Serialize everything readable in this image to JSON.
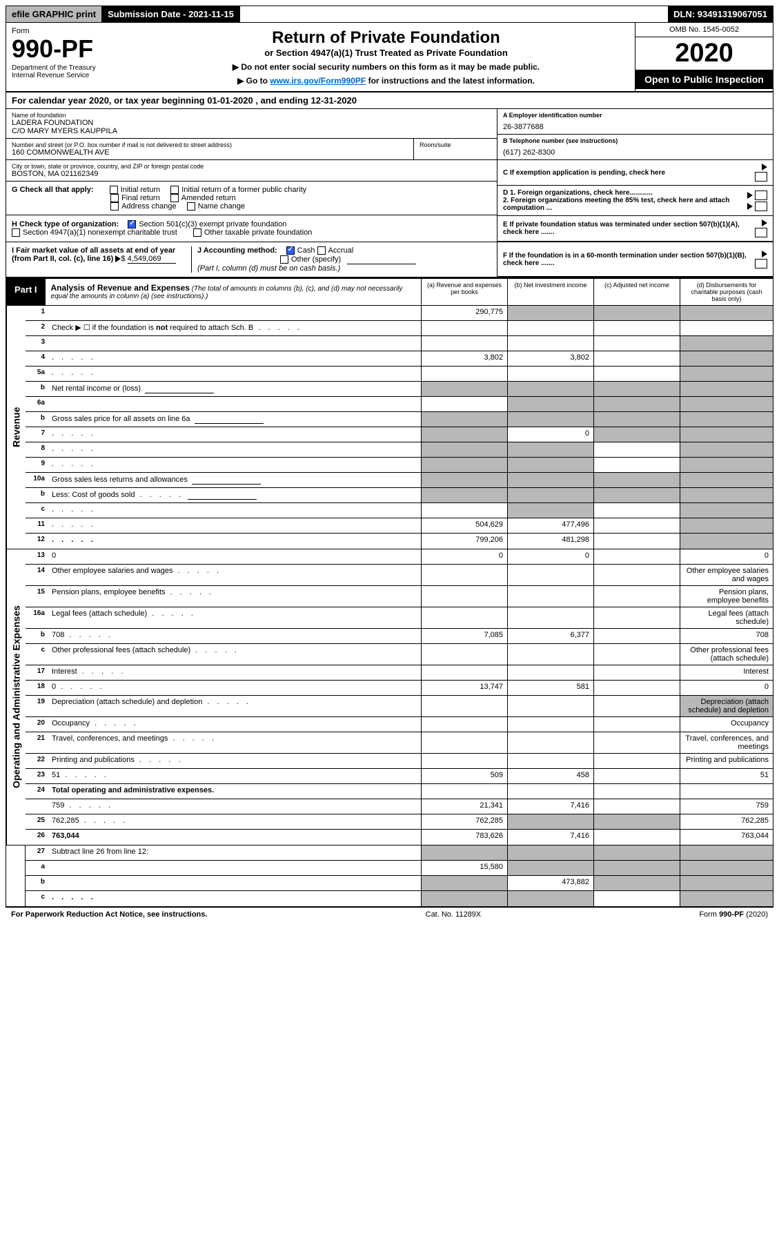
{
  "topbar": {
    "efile": "efile GRAPHIC print",
    "submission": "Submission Date - 2021-11-15",
    "dln": "DLN: 93491319067051"
  },
  "header": {
    "form_label": "Form",
    "form_num": "990-PF",
    "dept": "Department of the Treasury\nInternal Revenue Service",
    "title": "Return of Private Foundation",
    "subtitle": "or Section 4947(a)(1) Trust Treated as Private Foundation",
    "note1": "▶ Do not enter social security numbers on this form as it may be made public.",
    "note2_pre": "▶ Go to ",
    "note2_link": "www.irs.gov/Form990PF",
    "note2_post": " for instructions and the latest information.",
    "omb": "OMB No. 1545-0052",
    "year": "2020",
    "open": "Open to Public Inspection"
  },
  "cal_year": "For calendar year 2020, or tax year beginning 01-01-2020                           , and ending 12-31-2020",
  "info": {
    "name_label": "Name of foundation",
    "name_val": "LADERA FOUNDATION\nC/O MARY MYERS KAUPPILA",
    "addr_label": "Number and street (or P.O. box number if mail is not delivered to street address)",
    "addr_val": "160 COMMONWEALTH AVE",
    "room_label": "Room/suite",
    "city_label": "City or town, state or province, country, and ZIP or foreign postal code",
    "city_val": "BOSTON, MA  021162349",
    "a_label": "A Employer identification number",
    "a_val": "26-3877688",
    "b_label": "B Telephone number (see instructions)",
    "b_val": "(617) 262-8300",
    "c_label": "C If exemption application is pending, check here"
  },
  "g": {
    "label": "G Check all that apply:",
    "opts": [
      "Initial return",
      "Initial return of a former public charity",
      "Final return",
      "Amended return",
      "Address change",
      "Name change"
    ]
  },
  "h": {
    "label": "H Check type of organization:",
    "opt1": "Section 501(c)(3) exempt private foundation",
    "opt2": "Section 4947(a)(1) nonexempt charitable trust",
    "opt3": "Other taxable private foundation"
  },
  "i": {
    "label": "I Fair market value of all assets at end of year (from Part II, col. (c), line 16)",
    "val": "4,549,069"
  },
  "j": {
    "label": "J Accounting method:",
    "cash": "Cash",
    "accrual": "Accrual",
    "other": "Other (specify)",
    "note": "(Part I, column (d) must be on cash basis.)"
  },
  "d": {
    "d1": "D 1. Foreign organizations, check here............",
    "d2": "2. Foreign organizations meeting the 85% test, check here and attach computation ..."
  },
  "e_label": "E  If private foundation status was terminated under section 507(b)(1)(A), check here .......",
  "f_label": "F  If the foundation is in a 60-month termination under section 507(b)(1)(B), check here .......",
  "part1": {
    "label": "Part I",
    "title": "Analysis of Revenue and Expenses",
    "desc": " (The total of amounts in columns (b), (c), and (d) may not necessarily equal the amounts in column (a) (see instructions).)",
    "cols": [
      "(a)    Revenue and expenses per books",
      "(b)    Net investment income",
      "(c)   Adjusted net income",
      "(d)   Disbursements for charitable purposes (cash basis only)"
    ]
  },
  "revenue_label": "Revenue",
  "expenses_label": "Operating and Administrative Expenses",
  "rows": [
    {
      "n": "1",
      "d": "",
      "a": "290,775",
      "b": "",
      "c": "",
      "shade": [
        "b",
        "c",
        "d"
      ]
    },
    {
      "n": "2",
      "d": "Check ▶ ☐ if the foundation is not required to attach Sch. B",
      "dots": true,
      "noval": true
    },
    {
      "n": "3",
      "d": "",
      "a": "",
      "b": "",
      "c": "",
      "shade": [
        "d"
      ]
    },
    {
      "n": "4",
      "d": "",
      "dots": true,
      "a": "3,802",
      "b": "3,802",
      "c": "",
      "shade": [
        "d"
      ]
    },
    {
      "n": "5a",
      "d": "",
      "dots": true,
      "a": "",
      "b": "",
      "c": "",
      "shade": [
        "d"
      ]
    },
    {
      "n": "b",
      "d": "Net rental income or (loss)",
      "inline": true,
      "noval": true,
      "shade": [
        "a",
        "b",
        "c",
        "d"
      ]
    },
    {
      "n": "6a",
      "d": "",
      "a": "",
      "b": "",
      "c": "",
      "shade": [
        "b",
        "c",
        "d"
      ]
    },
    {
      "n": "b",
      "d": "Gross sales price for all assets on line 6a",
      "inline": true,
      "noval": true,
      "shade": [
        "a",
        "b",
        "c",
        "d"
      ]
    },
    {
      "n": "7",
      "d": "",
      "dots": true,
      "a": "",
      "b": "0",
      "c": "",
      "shade": [
        "a",
        "c",
        "d"
      ]
    },
    {
      "n": "8",
      "d": "",
      "dots": true,
      "a": "",
      "b": "",
      "c": "",
      "shade": [
        "a",
        "b",
        "d"
      ]
    },
    {
      "n": "9",
      "d": "",
      "dots": true,
      "a": "",
      "b": "",
      "c": "",
      "shade": [
        "a",
        "b",
        "d"
      ]
    },
    {
      "n": "10a",
      "d": "Gross sales less returns and allowances",
      "inline": true,
      "noval": true,
      "shade": [
        "a",
        "b",
        "c",
        "d"
      ]
    },
    {
      "n": "b",
      "d": "Less: Cost of goods sold",
      "dots": true,
      "inline": true,
      "noval": true,
      "shade": [
        "a",
        "b",
        "c",
        "d"
      ]
    },
    {
      "n": "c",
      "d": "",
      "dots": true,
      "a": "",
      "b": "",
      "c": "",
      "shade": [
        "b",
        "d"
      ]
    },
    {
      "n": "11",
      "d": "",
      "dots": true,
      "a": "504,629",
      "b": "477,496",
      "c": "",
      "shade": [
        "d"
      ]
    },
    {
      "n": "12",
      "d": "",
      "dots": true,
      "bold": true,
      "a": "799,206",
      "b": "481,298",
      "c": "",
      "shade": [
        "d"
      ]
    }
  ],
  "exp_rows": [
    {
      "n": "13",
      "d": "0",
      "a": "0",
      "b": "0",
      "c": ""
    },
    {
      "n": "14",
      "d": "Other employee salaries and wages",
      "dots": true
    },
    {
      "n": "15",
      "d": "Pension plans, employee benefits",
      "dots": true
    },
    {
      "n": "16a",
      "d": "Legal fees (attach schedule)",
      "dots": true
    },
    {
      "n": "b",
      "d": "708",
      "dots": true,
      "a": "7,085",
      "b": "6,377",
      "c": ""
    },
    {
      "n": "c",
      "d": "Other professional fees (attach schedule)",
      "dots": true
    },
    {
      "n": "17",
      "d": "Interest",
      "dots": true
    },
    {
      "n": "18",
      "d": "0",
      "dots": true,
      "a": "13,747",
      "b": "581",
      "c": ""
    },
    {
      "n": "19",
      "d": "Depreciation (attach schedule) and depletion",
      "dots": true,
      "shade": [
        "d"
      ]
    },
    {
      "n": "20",
      "d": "Occupancy",
      "dots": true
    },
    {
      "n": "21",
      "d": "Travel, conferences, and meetings",
      "dots": true
    },
    {
      "n": "22",
      "d": "Printing and publications",
      "dots": true
    },
    {
      "n": "23",
      "d": "51",
      "dots": true,
      "a": "509",
      "b": "458",
      "c": ""
    },
    {
      "n": "24",
      "d": "Total operating and administrative expenses.",
      "bold": true,
      "noval": true
    },
    {
      "n": "",
      "d": "759",
      "dots": true,
      "a": "21,341",
      "b": "7,416",
      "c": ""
    },
    {
      "n": "25",
      "d": "762,285",
      "dots": true,
      "a": "762,285",
      "b": "",
      "c": "",
      "shade": [
        "b",
        "c"
      ]
    },
    {
      "n": "26",
      "d": "763,044",
      "bold": true,
      "a": "783,626",
      "b": "7,416",
      "c": ""
    }
  ],
  "bottom_rows": [
    {
      "n": "27",
      "d": "Subtract line 26 from line 12:",
      "noval": true,
      "shade": [
        "a",
        "b",
        "c",
        "d"
      ]
    },
    {
      "n": "a",
      "d": "",
      "bold": true,
      "a": "15,580",
      "b": "",
      "c": "",
      "shade": [
        "b",
        "c",
        "d"
      ]
    },
    {
      "n": "b",
      "d": "",
      "bold": true,
      "a": "",
      "b": "473,882",
      "c": "",
      "shade": [
        "a",
        "c",
        "d"
      ]
    },
    {
      "n": "c",
      "d": "",
      "bold": true,
      "dots": true,
      "a": "",
      "b": "",
      "c": "",
      "shade": [
        "a",
        "b",
        "d"
      ]
    }
  ],
  "footer": {
    "left": "For Paperwork Reduction Act Notice, see instructions.",
    "mid": "Cat. No. 11289X",
    "right": "Form 990-PF (2020)"
  }
}
